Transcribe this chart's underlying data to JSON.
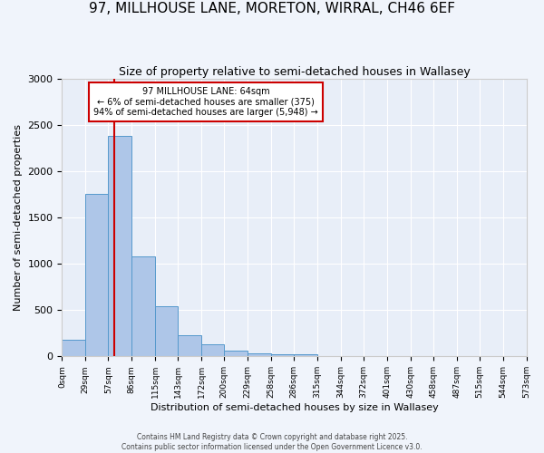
{
  "title": "97, MILLHOUSE LANE, MORETON, WIRRAL, CH46 6EF",
  "subtitle": "Size of property relative to semi-detached houses in Wallasey",
  "xlabel": "Distribution of semi-detached houses by size in Wallasey",
  "ylabel": "Number of semi-detached properties",
  "bin_edges": [
    0,
    29,
    57,
    86,
    115,
    143,
    172,
    200,
    229,
    258,
    286,
    315,
    344,
    372,
    401,
    430,
    458,
    487,
    515,
    544,
    573
  ],
  "bar_heights": [
    175,
    1750,
    2380,
    1075,
    540,
    225,
    130,
    65,
    30,
    25,
    25,
    0,
    0,
    0,
    0,
    0,
    0,
    0,
    0,
    0
  ],
  "bar_color": "#aec6e8",
  "bar_edge_color": "#5599cc",
  "red_line_x": 64,
  "annotation_title": "97 MILLHOUSE LANE: 64sqm",
  "annotation_line1": "← 6% of semi-detached houses are smaller (375)",
  "annotation_line2": "94% of semi-detached houses are larger (5,948) →",
  "annotation_box_color": "#ffffff",
  "annotation_box_edge": "#cc0000",
  "red_line_color": "#cc0000",
  "ylim": [
    0,
    3000
  ],
  "fig_bg_color": "#f0f4fb",
  "axes_bg_color": "#e8eef8",
  "footer1": "Contains HM Land Registry data © Crown copyright and database right 2025.",
  "footer2": "Contains public sector information licensed under the Open Government Licence v3.0.",
  "title_fontsize": 11,
  "subtitle_fontsize": 9,
  "tick_label_fontsize": 6.5,
  "ylabel_fontsize": 8,
  "xlabel_fontsize": 8,
  "footer_fontsize": 5.5
}
